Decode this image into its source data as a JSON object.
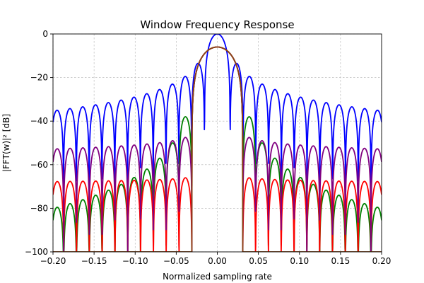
{
  "chart_data": {
    "type": "line",
    "title": "Window Frequency Response",
    "xlabel": "Normalized sampling rate",
    "ylabel": "|FFT(w)|² [dB]",
    "xlim": [
      -0.2,
      0.2
    ],
    "ylim": [
      -100,
      0
    ],
    "x_ticks": [
      "−0.20",
      "−0.15",
      "−0.10",
      "−0.05",
      "0.00",
      "0.05",
      "0.10",
      "0.15",
      "0.20"
    ],
    "x_tick_values": [
      -0.2,
      -0.15,
      -0.1,
      -0.05,
      0,
      0.05,
      0.1,
      0.15,
      0.2
    ],
    "y_ticks": [
      "−100",
      "−80",
      "−60",
      "−40",
      "−20",
      "0"
    ],
    "y_tick_values": [
      -100,
      -80,
      -60,
      -40,
      -20,
      0
    ],
    "grid": true,
    "series": [
      {
        "color": "#0000ff",
        "peak_db": 0,
        "first_null": 0.0156,
        "null_spacing": 0.0156,
        "first_sidelobe_db": -13.5,
        "sidelobe_decay_db_per_octave": -6,
        "null_depth_db": -90
      },
      {
        "color": "#008000",
        "peak_db": -6,
        "first_null": 0.031,
        "null_spacing": 0.0156,
        "first_sidelobe_db": -38,
        "sidelobe_decay_db_per_octave": -12,
        "null_depth_db": -100
      },
      {
        "color": "#ff0000",
        "peak_db": -6,
        "first_null": 0.031,
        "null_spacing": 0.0156,
        "first_sidelobe_db": -66,
        "sidelobe_decay_db_per_octave": -0.5,
        "null_depth_db": -100
      },
      {
        "color": "#800080",
        "peak_db": -6,
        "first_null": 0.031,
        "null_spacing": 0.0156,
        "first_sidelobe_db": -47.5,
        "sidelobe_decay_db_per_octave": -1.5,
        "null_depth_db": -100
      },
      {
        "color": "#8b4513",
        "peak_db": -6,
        "first_null": 0.031,
        "null_spacing": 0.0156,
        "first_sidelobe_db": -100,
        "sidelobe_decay_db_per_octave": 0,
        "null_depth_db": -100
      }
    ]
  }
}
